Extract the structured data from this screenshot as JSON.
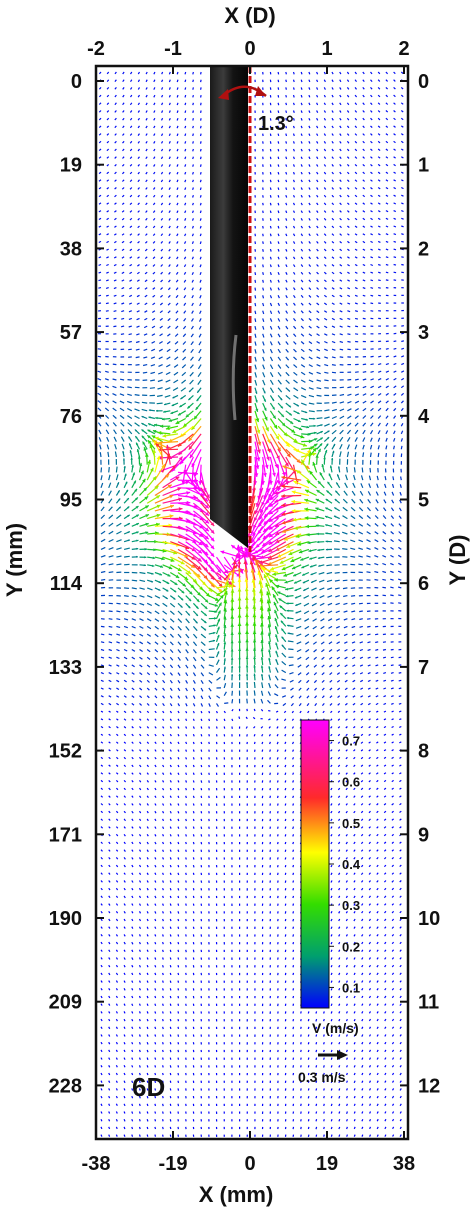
{
  "chart_data": {
    "type": "vector field",
    "x_top": {
      "label": "X (D)",
      "ticks": [
        "-2",
        "-1",
        "0",
        "1",
        "2"
      ],
      "range": [
        -2,
        2
      ]
    },
    "x_bottom": {
      "label": "X (mm)",
      "ticks": [
        "-38",
        "-19",
        "0",
        "19",
        "38"
      ],
      "range": [
        -38,
        38
      ]
    },
    "y_left": {
      "label": "Y (mm)",
      "ticks": [
        "0",
        "19",
        "38",
        "57",
        "76",
        "95",
        "114",
        "133",
        "152",
        "171",
        "190",
        "209",
        "228"
      ],
      "range": [
        0,
        247
      ]
    },
    "y_right": {
      "label": "Y (D)",
      "ticks": [
        "0",
        "1",
        "2",
        "3",
        "4",
        "5",
        "6",
        "7",
        "8",
        "9",
        "10",
        "11",
        "12"
      ],
      "range": [
        0,
        13
      ]
    },
    "colorbar": {
      "title": "V (m/s)",
      "ticks": [
        "0.1",
        "0.2",
        "0.3",
        "0.4",
        "0.5",
        "0.6",
        "0.7"
      ],
      "tick_values": [
        0.1,
        0.2,
        0.3,
        0.4,
        0.5,
        0.6,
        0.7
      ],
      "range": [
        0.05,
        0.75
      ],
      "colors": [
        "#0000ff",
        "#009f6e",
        "#33dd00",
        "#ffff00",
        "#ff2a2a",
        "#ff00ff"
      ]
    },
    "reference_vector": {
      "label": "0.3 m/s",
      "value": 0.3
    },
    "panel_label": "6D",
    "tilt_angle": "1.3°",
    "pipe": {
      "x_left_D": -0.52,
      "x_right_D": 0.0,
      "tip_y_D": 5.6,
      "edge_y_D": 5.3
    },
    "axis_line": {
      "x_D": 0.0,
      "color": "#cc1111"
    },
    "field": {
      "core_speed": 0.72,
      "ring_center": [
        -0.26,
        5.0
      ],
      "ring_radius": [
        1.2,
        1.15
      ],
      "ring_peak_speed": 0.62,
      "far_speed": 0.06,
      "swirl_center_D": [
        [
          -0.9,
          4.6
        ],
        [
          0.6,
          4.6
        ]
      ]
    }
  }
}
